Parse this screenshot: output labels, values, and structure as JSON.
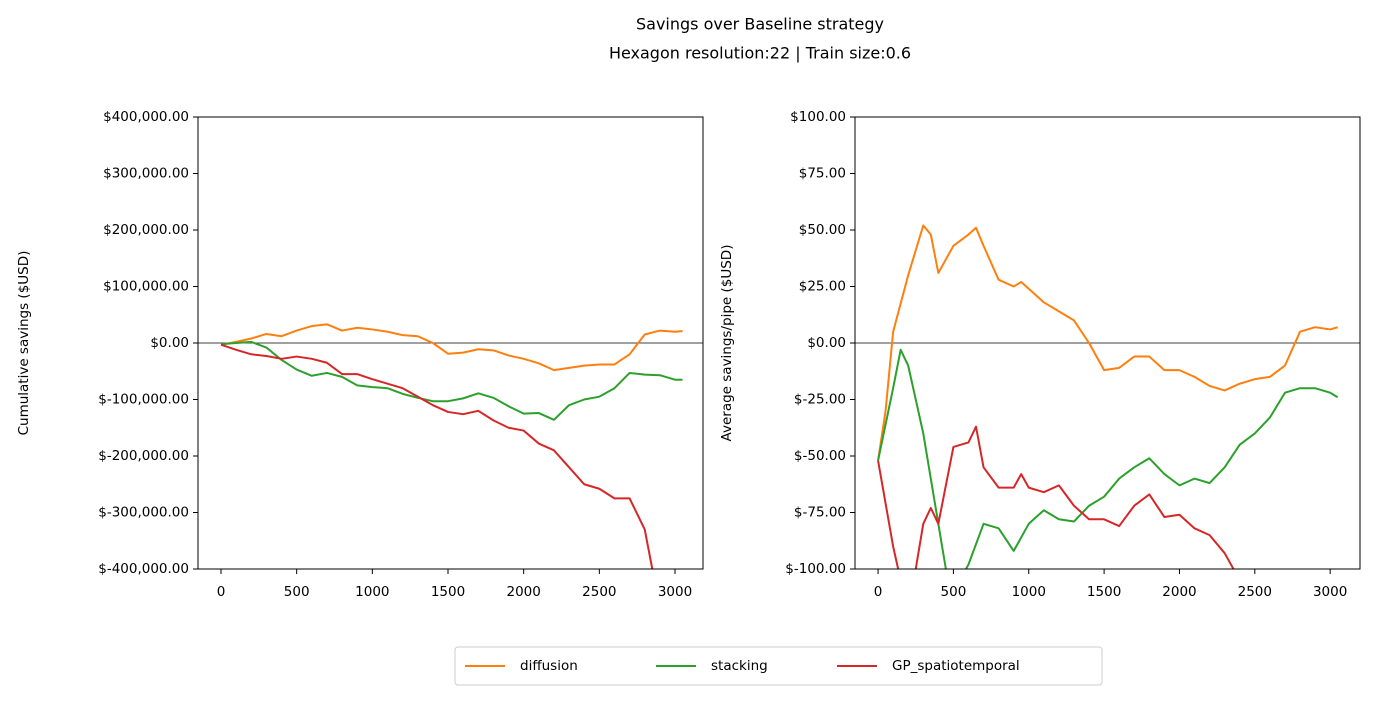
{
  "title": "Savings over Baseline strategy",
  "subtitle": "Hexagon resolution:22 | Train size:0.6",
  "chart_data": [
    {
      "type": "line",
      "ylabel": "Cumulative savings ($USD)",
      "xlim": [
        -152,
        3185
      ],
      "xticks": [
        0,
        500,
        1000,
        1500,
        2000,
        2500,
        3000
      ],
      "ylim": [
        -400000,
        400000
      ],
      "yticks": [
        {
          "value": -400000,
          "label": "$-400,000.00"
        },
        {
          "value": -300000,
          "label": "$-300,000.00"
        },
        {
          "value": -200000,
          "label": "$-200,000.00"
        },
        {
          "value": -100000,
          "label": "$-100,000.00"
        },
        {
          "value": 0,
          "label": "$0.00"
        },
        {
          "value": 100000,
          "label": "$100,000.00"
        },
        {
          "value": 200000,
          "label": "$200,000.00"
        },
        {
          "value": 300000,
          "label": "$300,000.00"
        },
        {
          "value": 400000,
          "label": "$400,000.00"
        }
      ],
      "hlines": [
        0
      ],
      "series": [
        {
          "name": "diffusion",
          "color": "#ff7f0e",
          "x": [
            0,
            100,
            200,
            300,
            400,
            500,
            600,
            700,
            800,
            900,
            1000,
            1100,
            1200,
            1300,
            1400,
            1500,
            1600,
            1700,
            1800,
            1900,
            2000,
            2100,
            2200,
            2300,
            2400,
            2500,
            2600,
            2700,
            2800,
            2900,
            3000,
            3050
          ],
          "values": [
            -3000,
            2000,
            8000,
            16000,
            12000,
            22000,
            30000,
            33000,
            22000,
            27000,
            24000,
            20000,
            14000,
            12000,
            0,
            -19000,
            -17000,
            -11000,
            -13000,
            -22000,
            -28000,
            -36000,
            -48000,
            -44000,
            -40000,
            -38000,
            -38000,
            -20000,
            15000,
            22000,
            20000,
            21000
          ]
        },
        {
          "name": "stacking",
          "color": "#2ca02c",
          "x": [
            0,
            100,
            200,
            300,
            400,
            500,
            600,
            700,
            800,
            900,
            1000,
            1100,
            1200,
            1300,
            1400,
            1500,
            1600,
            1700,
            1800,
            1900,
            2000,
            2100,
            2200,
            2300,
            2400,
            2500,
            2600,
            2700,
            2800,
            2900,
            3000,
            3050
          ],
          "values": [
            -2000,
            0,
            2000,
            -8000,
            -30000,
            -47000,
            -58000,
            -53000,
            -60000,
            -75000,
            -78000,
            -80000,
            -90000,
            -97000,
            -103000,
            -103000,
            -98000,
            -89000,
            -97000,
            -112000,
            -125000,
            -124000,
            -136000,
            -110000,
            -100000,
            -95000,
            -80000,
            -53000,
            -56000,
            -57000,
            -65000,
            -65000
          ]
        },
        {
          "name": "GP_spatiotemporal",
          "color": "#d62728",
          "x": [
            0,
            100,
            200,
            300,
            400,
            500,
            600,
            700,
            800,
            900,
            1000,
            1100,
            1200,
            1300,
            1400,
            1500,
            1600,
            1700,
            1800,
            1900,
            2000,
            2100,
            2200,
            2300,
            2400,
            2500,
            2600,
            2700,
            2800,
            2850
          ],
          "values": [
            -3000,
            -12000,
            -20000,
            -23000,
            -28000,
            -24000,
            -28000,
            -35000,
            -55000,
            -55000,
            -64000,
            -72000,
            -80000,
            -95000,
            -110000,
            -122000,
            -126000,
            -120000,
            -137000,
            -150000,
            -155000,
            -178000,
            -190000,
            -220000,
            -250000,
            -258000,
            -275000,
            -275000,
            -330000,
            -400000
          ]
        }
      ]
    },
    {
      "type": "line",
      "ylabel": "Average savings/pipe ($USD)",
      "xlim": [
        -153,
        3198
      ],
      "xticks": [
        0,
        500,
        1000,
        1500,
        2000,
        2500,
        3000
      ],
      "ylim": [
        -100,
        100
      ],
      "yticks": [
        {
          "value": -100,
          "label": "$-100.00"
        },
        {
          "value": -75,
          "label": "$-75.00"
        },
        {
          "value": -50,
          "label": "$-50.00"
        },
        {
          "value": -25,
          "label": "$-25.00"
        },
        {
          "value": 0,
          "label": "$0.00"
        },
        {
          "value": 25,
          "label": "$25.00"
        },
        {
          "value": 50,
          "label": "$50.00"
        },
        {
          "value": 75,
          "label": "$75.00"
        },
        {
          "value": 100,
          "label": "$100.00"
        }
      ],
      "hlines": [
        0
      ],
      "series": [
        {
          "name": "diffusion",
          "color": "#ff7f0e",
          "x": [
            0,
            50,
            100,
            200,
            300,
            350,
            400,
            500,
            600,
            650,
            700,
            800,
            900,
            950,
            1000,
            1100,
            1200,
            1300,
            1400,
            1500,
            1600,
            1700,
            1800,
            1900,
            2000,
            2100,
            2200,
            2300,
            2400,
            2500,
            2600,
            2700,
            2800,
            2900,
            3000,
            3050
          ],
          "values": [
            -52,
            -30,
            5,
            30,
            52,
            48,
            31,
            43,
            48,
            51,
            43,
            28,
            25,
            27,
            24,
            18,
            14,
            10,
            0,
            -12,
            -11,
            -6,
            -6,
            -12,
            -12,
            -15,
            -19,
            -21,
            -18,
            -16,
            -15,
            -10,
            5,
            7,
            6,
            7
          ]
        },
        {
          "name": "stacking",
          "color": "#2ca02c",
          "x": [
            0,
            100,
            150,
            200,
            300,
            400,
            450,
            500,
            600,
            700,
            800,
            900,
            1000,
            1100,
            1200,
            1300,
            1400,
            1500,
            1600,
            1700,
            1800,
            1900,
            2000,
            2100,
            2200,
            2300,
            2400,
            2500,
            2600,
            2700,
            2800,
            2900,
            3000,
            3050
          ],
          "values": [
            -52,
            -20,
            -3,
            -10,
            -40,
            -80,
            -100,
            -110,
            -98,
            -80,
            -82,
            -92,
            -80,
            -74,
            -78,
            -79,
            -72,
            -68,
            -60,
            -55,
            -51,
            -58,
            -63,
            -60,
            -62,
            -55,
            -45,
            -40,
            -33,
            -22,
            -20,
            -20,
            -22,
            -24
          ]
        },
        {
          "name": "GP_spatiotemporal",
          "color": "#d62728",
          "x": [
            0,
            100,
            200,
            300,
            350,
            400,
            500,
            600,
            650,
            700,
            800,
            900,
            950,
            1000,
            1100,
            1200,
            1300,
            1400,
            1500,
            1600,
            1700,
            1800,
            1900,
            2000,
            2100,
            2200,
            2300,
            2400
          ],
          "values": [
            -52,
            -90,
            -120,
            -80,
            -73,
            -80,
            -46,
            -44,
            -37,
            -55,
            -64,
            -64,
            -58,
            -64,
            -66,
            -63,
            -72,
            -78,
            -78,
            -81,
            -72,
            -67,
            -77,
            -76,
            -82,
            -85,
            -93,
            -105
          ]
        }
      ]
    }
  ]
}
